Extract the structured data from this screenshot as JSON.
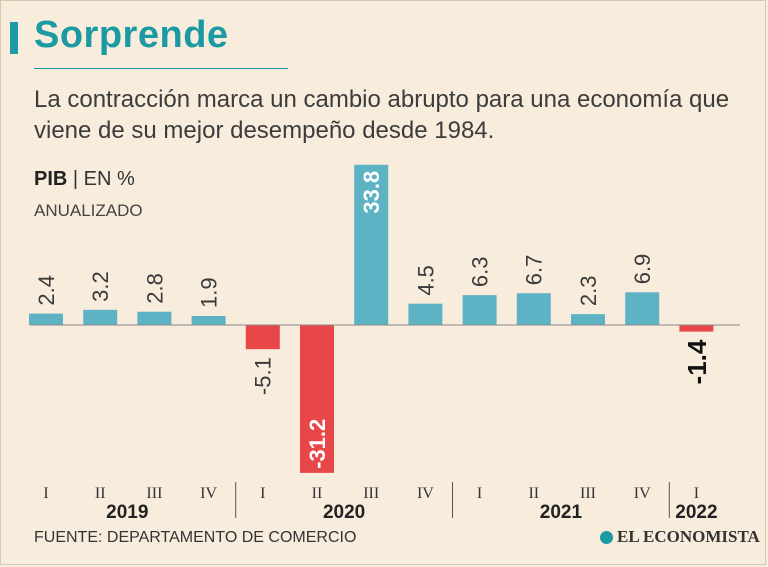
{
  "header": {
    "title": "Sorprende",
    "subtitle": "La contracción marca un cambio abrupto para una economía que viene de su mejor desempeño desde 1984.",
    "measure": "PIB",
    "separator": "|",
    "unit": "EN %",
    "unit_note": "ANUALIZADO"
  },
  "footer": {
    "source": "FUENTE: DEPARTAMENTO DE COMERCIO",
    "brand": "EL ECONOMISTA"
  },
  "colors": {
    "positive": "#5db3c3",
    "negative": "#e8474a",
    "accent": "#1c9aa3",
    "background": "#f8ecdc"
  },
  "chart_data": {
    "type": "bar",
    "title": "PIB | EN % ANUALIZADO",
    "xlabel": "",
    "ylabel": "",
    "categories": [
      "I",
      "II",
      "III",
      "IV",
      "I",
      "II",
      "III",
      "IV",
      "I",
      "II",
      "III",
      "IV",
      "I"
    ],
    "years": [
      {
        "label": "2019",
        "quarters": 4
      },
      {
        "label": "2020",
        "quarters": 4
      },
      {
        "label": "2021",
        "quarters": 4
      },
      {
        "label": "2022",
        "quarters": 1
      }
    ],
    "series": [
      {
        "name": "PIB",
        "values": [
          2.4,
          3.2,
          2.8,
          1.9,
          -5.1,
          -31.2,
          33.8,
          4.5,
          6.3,
          6.7,
          2.3,
          6.9,
          -1.4
        ]
      }
    ],
    "value_labels": [
      "2.4",
      "3.2",
      "2.8",
      "1.9",
      "-5.1",
      "-31.2",
      "33.8",
      "4.5",
      "6.3",
      "6.7",
      "2.3",
      "6.9",
      "-1.4"
    ],
    "ylim": [
      -31.2,
      33.8
    ],
    "grid": false,
    "legend": "none"
  }
}
